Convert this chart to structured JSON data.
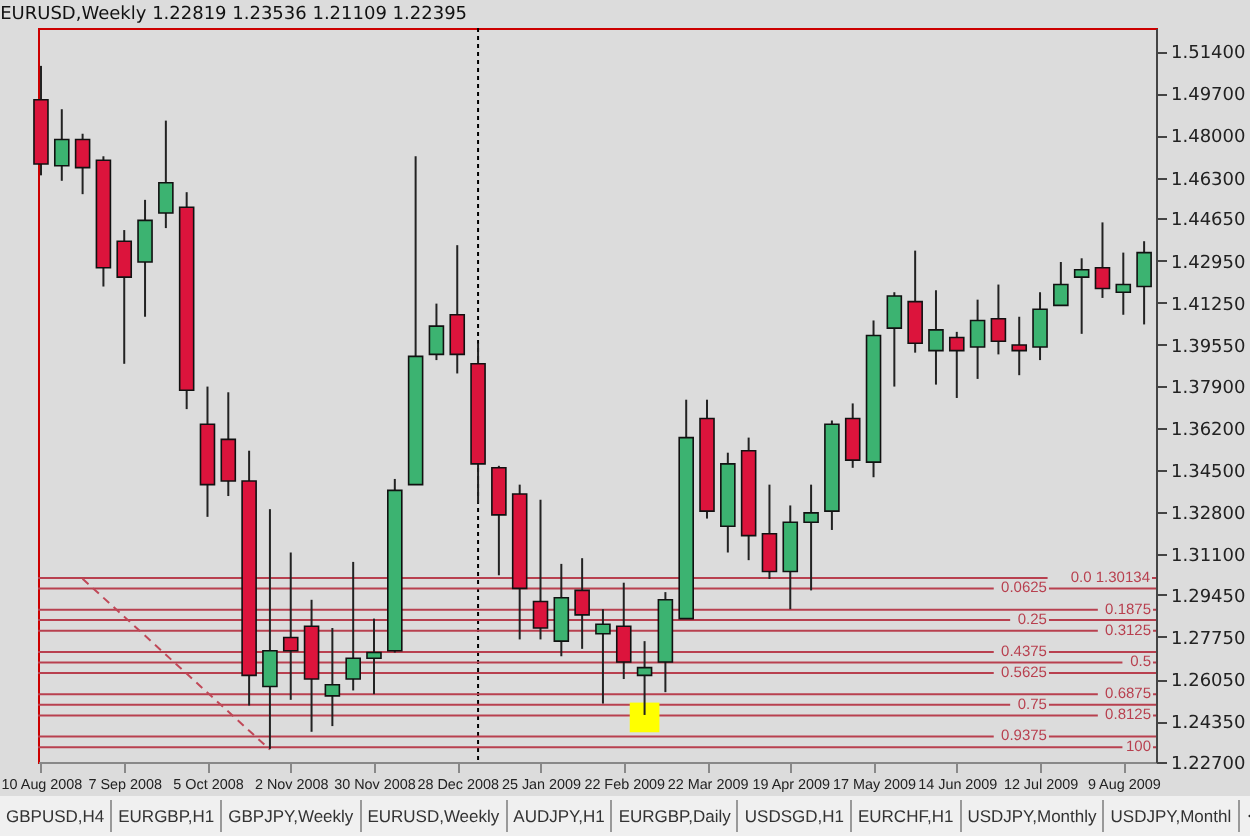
{
  "chart_data": {
    "type": "candlestick",
    "title": "EURUSD,Weekly  1.22819 1.23536 1.21109 1.22395",
    "x": [
      "2008-08-10",
      "2008-08-17",
      "2008-08-24",
      "2008-08-31",
      "2008-09-07",
      "2008-09-14",
      "2008-09-21",
      "2008-09-28",
      "2008-10-05",
      "2008-10-12",
      "2008-10-19",
      "2008-10-26",
      "2008-11-02",
      "2008-11-09",
      "2008-11-16",
      "2008-11-23",
      "2008-11-30",
      "2008-12-07",
      "2008-12-14",
      "2008-12-21",
      "2008-12-28",
      "2009-01-04",
      "2009-01-11",
      "2009-01-18",
      "2009-01-25",
      "2009-02-01",
      "2009-02-08",
      "2009-02-15",
      "2009-02-22",
      "2009-03-01",
      "2009-03-08",
      "2009-03-15",
      "2009-03-22",
      "2009-03-29",
      "2009-04-05",
      "2009-04-12",
      "2009-04-19",
      "2009-04-26",
      "2009-05-03",
      "2009-05-10",
      "2009-05-17",
      "2009-05-24",
      "2009-05-31",
      "2009-06-07",
      "2009-06-14",
      "2009-06-21",
      "2009-06-28",
      "2009-07-05",
      "2009-07-12",
      "2009-07-19",
      "2009-07-26",
      "2009-08-02",
      "2009-08-09",
      "2009-08-16"
    ],
    "ohlc": [
      [
        1.4944,
        1.5081,
        1.4639,
        1.4685
      ],
      [
        1.4678,
        1.4906,
        1.4617,
        1.4784
      ],
      [
        1.4784,
        1.4807,
        1.4563,
        1.467
      ],
      [
        1.47,
        1.4716,
        1.419,
        1.4266
      ],
      [
        1.4373,
        1.4418,
        1.3878,
        1.4228
      ],
      [
        1.4289,
        1.454,
        1.4068,
        1.4457
      ],
      [
        1.4487,
        1.486,
        1.4426,
        1.4609
      ],
      [
        1.451,
        1.4571,
        1.3695,
        1.3771
      ],
      [
        1.3634,
        1.3786,
        1.326,
        1.339
      ],
      [
        1.3573,
        1.3763,
        1.3344,
        1.3405
      ],
      [
        1.3405,
        1.3527,
        1.2498,
        1.262
      ],
      [
        1.2575,
        1.3291,
        1.2323,
        1.2719
      ],
      [
        1.2773,
        1.3116,
        1.2521,
        1.2719
      ],
      [
        1.2818,
        1.2925,
        1.2392,
        1.2605
      ],
      [
        1.2537,
        1.2811,
        1.2415,
        1.2582
      ],
      [
        1.2605,
        1.3078,
        1.2559,
        1.2689
      ],
      [
        1.2689,
        1.2849,
        1.2544,
        1.2712
      ],
      [
        1.2719,
        1.3413,
        1.2712,
        1.3367
      ],
      [
        1.339,
        1.4716,
        1.339,
        1.3908
      ],
      [
        1.3916,
        1.4121,
        1.3893,
        1.403
      ],
      [
        1.4076,
        1.4357,
        1.3839,
        1.3916
      ],
      [
        1.3878,
        1.3961,
        1.3314,
        1.3474
      ],
      [
        1.3458,
        1.3466,
        1.3024,
        1.3268
      ],
      [
        1.3352,
        1.339,
        1.2765,
        1.2971
      ],
      [
        1.2918,
        1.3329,
        1.2765,
        1.2811
      ],
      [
        1.2758,
        1.307,
        1.2697,
        1.2933
      ],
      [
        1.2963,
        1.3093,
        1.2727,
        1.2864
      ],
      [
        1.2788,
        1.2887,
        1.2506,
        1.2826
      ],
      [
        1.2818,
        1.2994,
        1.2605,
        1.2674
      ],
      [
        1.262,
        1.2758,
        1.246,
        1.2651
      ],
      [
        1.2674,
        1.2956,
        1.2552,
        1.2925
      ],
      [
        1.2849,
        1.3733,
        1.2849,
        1.358
      ],
      [
        1.3657,
        1.3733,
        1.3253,
        1.3283
      ],
      [
        1.3222,
        1.3519,
        1.3116,
        1.3474
      ],
      [
        1.3527,
        1.358,
        1.3085,
        1.3184
      ],
      [
        1.3192,
        1.339,
        1.3009,
        1.3039
      ],
      [
        1.3039,
        1.3306,
        1.2887,
        1.3238
      ],
      [
        1.3238,
        1.339,
        1.2963,
        1.3276
      ],
      [
        1.3283,
        1.3649,
        1.3207,
        1.3634
      ],
      [
        1.3657,
        1.3718,
        1.3458,
        1.3489
      ],
      [
        1.3481,
        1.4053,
        1.342,
        1.3992
      ],
      [
        1.4022,
        1.4167,
        1.3786,
        1.4152
      ],
      [
        1.4129,
        1.4335,
        1.3923,
        1.3961
      ],
      [
        1.3931,
        1.4175,
        1.3794,
        1.4015
      ],
      [
        1.3984,
        1.4007,
        1.374,
        1.3931
      ],
      [
        1.3946,
        1.4137,
        1.3817,
        1.4053
      ],
      [
        1.406,
        1.4198,
        1.3916,
        1.3969
      ],
      [
        1.3954,
        1.4068,
        1.3832,
        1.3931
      ],
      [
        1.3946,
        1.4167,
        1.3893,
        1.4098
      ],
      [
        1.4114,
        1.4289,
        1.4114,
        1.4198
      ],
      [
        1.4228,
        1.4304,
        1.3999,
        1.4258
      ],
      [
        1.4266,
        1.4449,
        1.4144,
        1.4182
      ],
      [
        1.4167,
        1.4327,
        1.4076,
        1.4198
      ],
      [
        1.419,
        1.4373,
        1.4037,
        1.4327
      ]
    ],
    "colors": [
      "#dc143c",
      "#3cb371",
      "#dc143c",
      "#dc143c",
      "#dc143c",
      "#3cb371",
      "#3cb371",
      "#dc143c",
      "#dc143c",
      "#dc143c",
      "#dc143c",
      "#3cb371",
      "#dc143c",
      "#dc143c",
      "#3cb371",
      "#3cb371",
      "#3cb371",
      "#3cb371",
      "#3cb371",
      "#3cb371",
      "#dc143c",
      "#dc143c",
      "#dc143c",
      "#dc143c",
      "#dc143c",
      "#3cb371",
      "#dc143c",
      "#3cb371",
      "#dc143c",
      "#3cb371",
      "#3cb371",
      "#3cb371",
      "#dc143c",
      "#3cb371",
      "#dc143c",
      "#dc143c",
      "#3cb371",
      "#3cb371",
      "#3cb371",
      "#dc143c",
      "#3cb371",
      "#3cb371",
      "#dc143c",
      "#3cb371",
      "#dc143c",
      "#3cb371",
      "#dc143c",
      "#dc143c",
      "#3cb371",
      "#3cb371",
      "#3cb371",
      "#dc143c",
      "#3cb371",
      "#3cb371"
    ],
    "series": [
      {
        "type": "line",
        "x": [
          "2008-08-24",
          "2008-10-26"
        ],
        "values": [
          1.301,
          1.232
        ],
        "color": "#c04858",
        "line_style": "dashed"
      },
      {
        "type": "scatter",
        "x": [
          "2009-03-01"
        ],
        "values": [
          1.245
        ],
        "color": "#ffff00",
        "marker": "square"
      }
    ],
    "xlim": [
      "2008-08-09",
      "2009-08-20"
    ],
    "xticks": [
      {
        "value": "2008-08-10",
        "label": "10 Aug 2008"
      },
      {
        "value": "2008-09-07",
        "label": "7 Sep 2008"
      },
      {
        "value": "2008-10-05",
        "label": "5 Oct 2008"
      },
      {
        "value": "2008-11-02",
        "label": "2 Nov 2008"
      },
      {
        "value": "2008-11-30",
        "label": "30 Nov 2008"
      },
      {
        "value": "2008-12-28",
        "label": "28 Dec 2008"
      },
      {
        "value": "2009-01-25",
        "label": "25 Jan 2009"
      },
      {
        "value": "2009-02-22",
        "label": "22 Feb 2009"
      },
      {
        "value": "2009-03-22",
        "label": "22 Mar 2009"
      },
      {
        "value": "2009-04-19",
        "label": "19 Apr 2009"
      },
      {
        "value": "2009-05-17",
        "label": "17 May 2009"
      },
      {
        "value": "2009-06-14",
        "label": "14 Jun 2009"
      },
      {
        "value": "2009-07-12",
        "label": "12 Jul 2009"
      },
      {
        "value": "2009-08-09",
        "label": "9 Aug 2009"
      }
    ],
    "ylim": [
      1.227,
      1.5234
    ],
    "yticks": [
      {
        "value": 1.514,
        "label": "1.51400"
      },
      {
        "value": 1.497,
        "label": "1.49700"
      },
      {
        "value": 1.48,
        "label": "1.48000"
      },
      {
        "value": 1.463,
        "label": "1.46300"
      },
      {
        "value": 1.4465,
        "label": "1.44650"
      },
      {
        "value": 1.4295,
        "label": "1.42950"
      },
      {
        "value": 1.4125,
        "label": "1.41250"
      },
      {
        "value": 1.3955,
        "label": "1.39550"
      },
      {
        "value": 1.379,
        "label": "1.37900"
      },
      {
        "value": 1.362,
        "label": "1.36200"
      },
      {
        "value": 1.345,
        "label": "1.34500"
      },
      {
        "value": 1.328,
        "label": "1.32800"
      },
      {
        "value": 1.311,
        "label": "1.31100"
      },
      {
        "value": 1.2945,
        "label": "1.29450"
      },
      {
        "value": 1.2775,
        "label": "1.27750"
      },
      {
        "value": 1.2605,
        "label": "1.26050"
      },
      {
        "value": 1.2435,
        "label": "1.24350"
      },
      {
        "value": 1.227,
        "label": "1.22700"
      }
    ],
    "ref_lines": [
      {
        "axis": "x",
        "value": "2009-01-04",
        "color": "#000000",
        "line_style": "dotted"
      },
      {
        "axis": "y",
        "value": 1.30134,
        "label": "0.0  1.30134",
        "color": "#b8404f"
      },
      {
        "axis": "y",
        "value": 1.2971,
        "color": "#b8404f"
      },
      {
        "axis": "y",
        "value": 1.2885,
        "color": "#b8404f"
      },
      {
        "axis": "y",
        "value": 1.2843,
        "color": "#b8404f"
      },
      {
        "axis": "y",
        "value": 1.28,
        "color": "#b8404f"
      },
      {
        "axis": "y",
        "value": 1.2714,
        "color": "#b8404f"
      },
      {
        "axis": "y",
        "value": 1.2672,
        "color": "#b8404f"
      },
      {
        "axis": "y",
        "value": 1.2629,
        "color": "#b8404f"
      },
      {
        "axis": "y",
        "value": 1.2544,
        "color": "#b8404f"
      },
      {
        "axis": "y",
        "value": 1.2501,
        "color": "#b8404f"
      },
      {
        "axis": "y",
        "value": 1.2458,
        "color": "#b8404f"
      },
      {
        "axis": "y",
        "value": 1.2373,
        "color": "#b8404f"
      },
      {
        "axis": "y",
        "value": 1.233,
        "color": "#b8404f"
      }
    ],
    "annotations": [
      {
        "text": "0.0625",
        "x": "2009-07-15",
        "y": 1.2971
      },
      {
        "text": "0.1875",
        "x": "2009-08-19",
        "y": 1.2885
      },
      {
        "text": "0.25",
        "x": "2009-07-15",
        "y": 1.2843
      },
      {
        "text": "0.3125",
        "x": "2009-08-19",
        "y": 1.28
      },
      {
        "text": "0.4375",
        "x": "2009-07-15",
        "y": 1.2714
      },
      {
        "text": "0.5",
        "x": "2009-08-19",
        "y": 1.2672
      },
      {
        "text": "0.5625",
        "x": "2009-07-15",
        "y": 1.2629
      },
      {
        "text": "0.6875",
        "x": "2009-08-19",
        "y": 1.2544
      },
      {
        "text": "0.75",
        "x": "2009-07-15",
        "y": 1.2501
      },
      {
        "text": "0.8125",
        "x": "2009-08-19",
        "y": 1.2458
      },
      {
        "text": "0.9375",
        "x": "2009-07-15",
        "y": 1.2373
      },
      {
        "text": "100",
        "x": "2009-08-19",
        "y": 1.233
      },
      "GBPUSD,H4",
      "EURGBP,H1",
      "GBPJPY,Weekly",
      "EURUSD,Weekly",
      "AUDJPY,H1",
      "EURGBP,Daily",
      "USDSGD,H1",
      "EURCHF,H1",
      "USDJPY,Monthly",
      "USDJPY,Monthl"
    ],
    "grid": false
  }
}
